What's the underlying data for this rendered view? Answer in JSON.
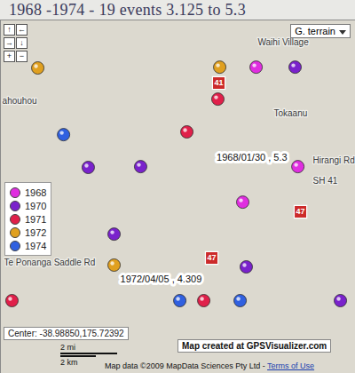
{
  "chart_data": {
    "type": "scatter",
    "title": "1968 -1974 - 19 events 3.125 to 5.3",
    "xlim": [
      175.6083,
      175.8395
    ],
    "ylim": [
      -39.083,
      -38.9039
    ],
    "tick_labels": false,
    "legend": "top-left",
    "series": [
      {
        "name": "1968",
        "color": "#e02ee0",
        "x": [
          175.7748,
          175.802,
          175.7661
        ],
        "y": [
          -38.9278,
          -38.9782,
          -38.9962
        ]
      },
      {
        "name": "1970",
        "color": "#7a22cc",
        "x": [
          175.8002,
          175.6655,
          175.6996,
          175.6823,
          175.7684,
          175.8297
        ],
        "y": [
          -38.9278,
          -38.9786,
          -38.9782,
          -39.0124,
          -39.029,
          -39.0461
        ]
      },
      {
        "name": "1971",
        "color": "#e0204a",
        "x": [
          175.7499,
          175.7297,
          175.6158,
          175.7407
        ],
        "y": [
          -38.944,
          -38.9606,
          -39.0461,
          -39.0461
        ]
      },
      {
        "name": "1972",
        "color": "#e0a020",
        "x": [
          175.6326,
          175.7511,
          175.6823
        ],
        "y": [
          -38.9282,
          -38.9278,
          -39.0281
        ]
      },
      {
        "name": "1974",
        "color": "#3060e0",
        "x": [
          175.6494,
          175.7251,
          175.7644
        ],
        "y": [
          -38.962,
          -39.0461,
          -39.0461
        ]
      }
    ],
    "annotations": [
      {
        "text": "1968/01/30 , 5.3",
        "x": 175.802,
        "y": -38.9782
      },
      {
        "text": "1972/04/05 , 4.309",
        "x": 175.6823,
        "y": -39.0281
      }
    ],
    "places": [
      {
        "text": "Waihi Village",
        "x": 175.7759,
        "y": -38.9151
      },
      {
        "text": "Tokaanu",
        "x": 175.7863,
        "y": -38.9511
      },
      {
        "text": "Hirangi Rd",
        "x": 175.8118,
        "y": -38.975
      },
      {
        "text": "SH 41",
        "x": 175.8118,
        "y": -38.9854
      },
      {
        "text": "Te Ponanga Saddle Rd",
        "x": 175.6106,
        "y": -39.0268
      },
      {
        "text": "ahouhou",
        "x": 175.6095,
        "y": -38.9449
      }
    ],
    "route_shields": [
      {
        "text": "41",
        "x": 175.7505,
        "y": -38.9358
      },
      {
        "text": "47",
        "x": 175.8037,
        "y": -39.0011
      },
      {
        "text": "47",
        "x": 175.7459,
        "y": -39.0245
      }
    ],
    "map_ui": {
      "map_type": "G. terrain",
      "nav_controls": [
        "↑",
        "←",
        "→",
        "↓",
        "+",
        "−"
      ],
      "center_label": "Center: -38.98850,175.72392",
      "scale_labels": [
        "2 mi",
        "2 km"
      ],
      "credit": "Map created at GPSVisualizer.com",
      "attribution": "Map data ©2009 MapData Sciences Pty Ltd -",
      "terms": "Terms of Use"
    }
  }
}
